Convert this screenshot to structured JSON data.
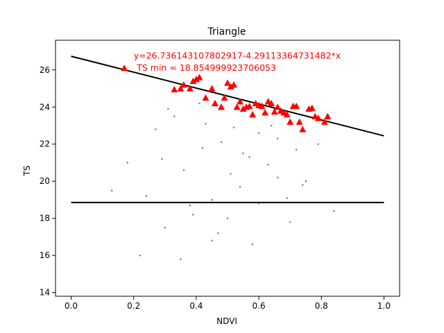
{
  "chart_data": {
    "type": "scatter",
    "title": "Triangle",
    "xlabel": "NDVI",
    "ylabel": "TS",
    "xlim": [
      -0.05,
      1.05
    ],
    "ylim": [
      13.8,
      27.6
    ],
    "xticks": [
      0.0,
      0.2,
      0.4,
      0.6,
      0.8,
      1.0
    ],
    "xtick_labels": [
      "0.0",
      "0.2",
      "0.4",
      "0.6",
      "0.8",
      "1.0"
    ],
    "yticks": [
      14,
      16,
      18,
      20,
      22,
      24,
      26
    ],
    "ytick_labels": [
      "14",
      "16",
      "18",
      "20",
      "22",
      "24",
      "26"
    ],
    "grid": false,
    "annotations": [
      {
        "text": "y=26.736143107802917-4.29113364731482*x",
        "x": 0.2,
        "y": 26.75,
        "color": "#ff0000"
      },
      {
        "text": "TS min = 18.854999923706053",
        "x": 0.21,
        "y": 26.1,
        "color": "#ff0000"
      }
    ],
    "lines": [
      {
        "intercept": 26.736143107802917,
        "slope": -4.29113364731482,
        "x": [
          0.0,
          1.0
        ],
        "color": "#000000"
      },
      {
        "intercept": 18.854999923706053,
        "slope": 0,
        "x": [
          0.0,
          1.0
        ],
        "color": "#000000"
      }
    ],
    "series": [
      {
        "marker": "triangle",
        "color": "#ff0000",
        "x": [
          0.17,
          0.33,
          0.35,
          0.36,
          0.38,
          0.39,
          0.4,
          0.41,
          0.43,
          0.45,
          0.46,
          0.48,
          0.49,
          0.5,
          0.51,
          0.52,
          0.53,
          0.54,
          0.55,
          0.56,
          0.57,
          0.58,
          0.59,
          0.6,
          0.61,
          0.62,
          0.63,
          0.64,
          0.65,
          0.66,
          0.67,
          0.68,
          0.69,
          0.7,
          0.71,
          0.72,
          0.73,
          0.74,
          0.76,
          0.77,
          0.78,
          0.79,
          0.81,
          0.82
        ],
        "y": [
          26.1,
          24.95,
          25.0,
          25.2,
          25.0,
          25.4,
          25.5,
          25.6,
          24.5,
          25.0,
          24.2,
          24.0,
          24.5,
          25.3,
          25.1,
          25.2,
          24.0,
          24.3,
          23.9,
          24.0,
          24.05,
          23.6,
          24.2,
          24.1,
          24.05,
          23.7,
          24.3,
          24.2,
          23.75,
          24.0,
          23.8,
          23.7,
          23.6,
          23.2,
          24.05,
          24.05,
          23.2,
          22.8,
          23.9,
          23.95,
          23.5,
          23.4,
          23.2,
          23.5
        ]
      },
      {
        "marker": "dot",
        "color": "#555555",
        "description": "dense background points",
        "x": [
          0.13,
          0.18,
          0.24,
          0.27,
          0.3,
          0.33,
          0.36,
          0.39,
          0.42,
          0.45,
          0.48,
          0.51,
          0.54,
          0.57,
          0.6,
          0.63,
          0.66,
          0.69,
          0.72,
          0.75,
          0.79,
          0.84,
          0.22,
          0.35,
          0.47,
          0.58,
          0.7,
          0.31,
          0.41,
          0.52,
          0.64,
          0.45,
          0.38,
          0.55,
          0.66,
          0.29,
          0.5,
          0.6,
          0.74,
          0.43
        ],
        "y": [
          19.5,
          21.0,
          19.2,
          22.8,
          17.5,
          23.5,
          20.6,
          18.2,
          21.8,
          16.8,
          22.1,
          20.4,
          19.7,
          21.3,
          18.8,
          20.9,
          22.3,
          19.1,
          21.7,
          20.0,
          22.0,
          18.4,
          16.0,
          15.8,
          17.2,
          16.6,
          17.8,
          23.9,
          24.2,
          22.9,
          23.0,
          19.0,
          18.7,
          21.5,
          20.2,
          21.2,
          18.0,
          22.6,
          19.8,
          23.1
        ]
      }
    ]
  }
}
